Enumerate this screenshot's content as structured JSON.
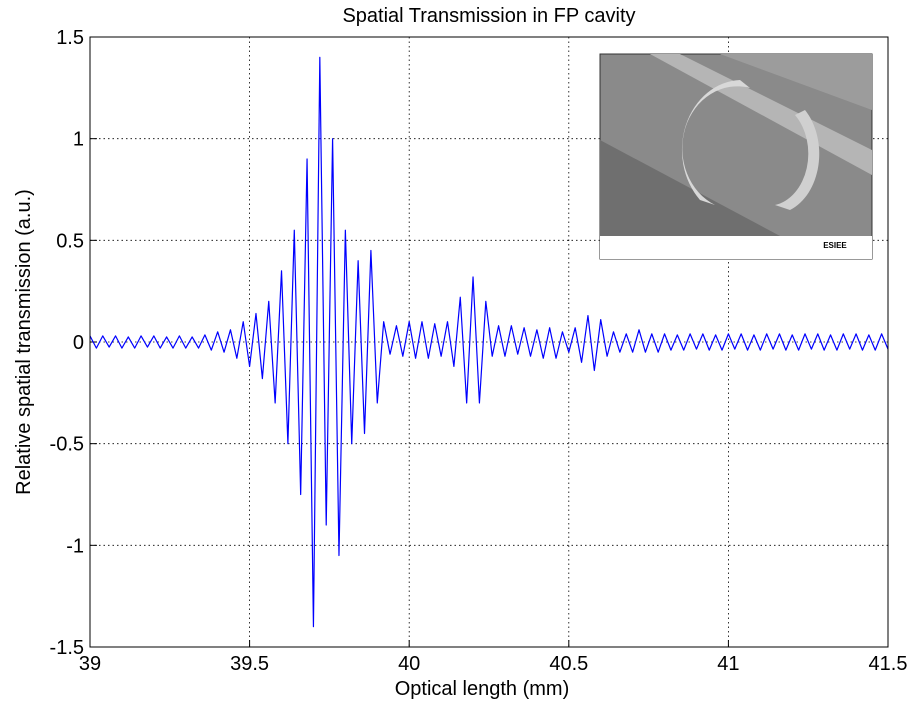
{
  "chart_data": {
    "type": "line",
    "title": "Spatial Transmission in FP cavity",
    "x_label": "Optical length (mm)",
    "y_label": "Relative spatial transmission (a.u.)",
    "inset_label": "ESIEE",
    "xlim": [
      39,
      41.5
    ],
    "xticks": [
      39,
      39.5,
      40,
      40.5,
      41,
      41.5
    ],
    "ylim": [
      -1.5,
      1.5
    ],
    "yticks": [
      -1.5,
      -1,
      -0.5,
      0,
      0.5,
      1,
      1.5
    ],
    "grid": true,
    "x": [
      39,
      39.02,
      39.04,
      39.06,
      39.08,
      39.1,
      39.12,
      39.14,
      39.16,
      39.18,
      39.2,
      39.22,
      39.24,
      39.26,
      39.28,
      39.3,
      39.32,
      39.34,
      39.36,
      39.38,
      39.4,
      39.42,
      39.44,
      39.46,
      39.48,
      39.5,
      39.52,
      39.54,
      39.56,
      39.58,
      39.6,
      39.62,
      39.64,
      39.66,
      39.68,
      39.7,
      39.72,
      39.74,
      39.76,
      39.78,
      39.8,
      39.82,
      39.84,
      39.86,
      39.88,
      39.9,
      39.92,
      39.94,
      39.96,
      39.98,
      40,
      40.02,
      40.04,
      40.06,
      40.08,
      40.1,
      40.12,
      40.14,
      40.16,
      40.18,
      40.2,
      40.22,
      40.24,
      40.26,
      40.28,
      40.3,
      40.32,
      40.34,
      40.36,
      40.38,
      40.4,
      40.42,
      40.44,
      40.46,
      40.48,
      40.5,
      40.52,
      40.54,
      40.56,
      40.58,
      40.6,
      40.62,
      40.64,
      40.66,
      40.68,
      40.7,
      40.72,
      40.74,
      40.76,
      40.78,
      40.8,
      40.82,
      40.84,
      40.86,
      40.88,
      40.9,
      40.92,
      40.94,
      40.96,
      40.98,
      41,
      41.02,
      41.04,
      41.06,
      41.08,
      41.1,
      41.12,
      41.14,
      41.16,
      41.18,
      41.2,
      41.22,
      41.24,
      41.26,
      41.28,
      41.3,
      41.32,
      41.34,
      41.36,
      41.38,
      41.4,
      41.42,
      41.44,
      41.46,
      41.48,
      41.5
    ],
    "series": [
      {
        "name": "Transmission",
        "color": "#0000ff",
        "values": [
          0.03,
          -0.03,
          0.03,
          -0.025,
          0.03,
          -0.03,
          0.025,
          -0.03,
          0.03,
          -0.025,
          0.03,
          -0.03,
          0.025,
          -0.03,
          0.03,
          -0.03,
          0.025,
          -0.03,
          0.035,
          -0.04,
          0.05,
          -0.05,
          0.06,
          -0.08,
          0.1,
          -0.12,
          0.14,
          -0.18,
          0.2,
          -0.3,
          0.35,
          -0.5,
          0.55,
          -0.75,
          0.9,
          -1.4,
          1.4,
          -0.9,
          1.0,
          -1.05,
          0.55,
          -0.5,
          0.4,
          -0.45,
          0.45,
          -0.3,
          0.1,
          -0.06,
          0.08,
          -0.07,
          0.1,
          -0.08,
          0.1,
          -0.08,
          0.09,
          -0.07,
          0.1,
          -0.12,
          0.22,
          -0.3,
          0.32,
          -0.3,
          0.2,
          -0.07,
          0.08,
          -0.07,
          0.08,
          -0.06,
          0.07,
          -0.07,
          0.06,
          -0.08,
          0.07,
          -0.08,
          0.05,
          -0.05,
          0.07,
          -0.1,
          0.13,
          -0.14,
          0.11,
          -0.07,
          0.05,
          -0.05,
          0.04,
          -0.05,
          0.06,
          -0.05,
          0.04,
          -0.05,
          0.04,
          -0.04,
          0.035,
          -0.04,
          0.04,
          -0.035,
          0.04,
          -0.04,
          0.035,
          -0.04,
          0.04,
          -0.035,
          0.04,
          -0.04,
          0.035,
          -0.04,
          0.04,
          -0.035,
          0.04,
          -0.04,
          0.035,
          -0.04,
          0.04,
          -0.035,
          0.04,
          -0.04,
          0.035,
          -0.04,
          0.04,
          -0.035,
          0.04,
          -0.04,
          0.035,
          -0.04,
          0.04,
          -0.035
        ]
      }
    ]
  }
}
